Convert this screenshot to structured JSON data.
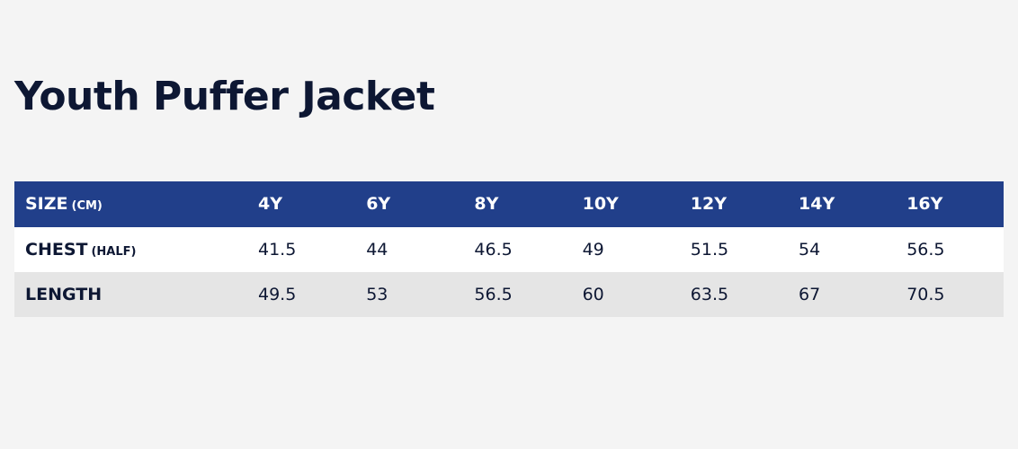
{
  "header": {
    "title": "Youth Puffer Jacket"
  },
  "table": {
    "head": {
      "label": "SIZE",
      "unit": "(CM)",
      "cells": [
        "4Y",
        "6Y",
        "8Y",
        "10Y",
        "12Y",
        "14Y",
        "16Y"
      ]
    },
    "rows": [
      {
        "label": "CHEST",
        "unit": "(HALF)",
        "cells": [
          "41.5",
          "44",
          "46.5",
          "49",
          "51.5",
          "54",
          "56.5"
        ]
      },
      {
        "label": "LENGTH",
        "cells": [
          "49.5",
          "53",
          "56.5",
          "60",
          "63.5",
          "67",
          "70.5"
        ]
      }
    ]
  }
}
